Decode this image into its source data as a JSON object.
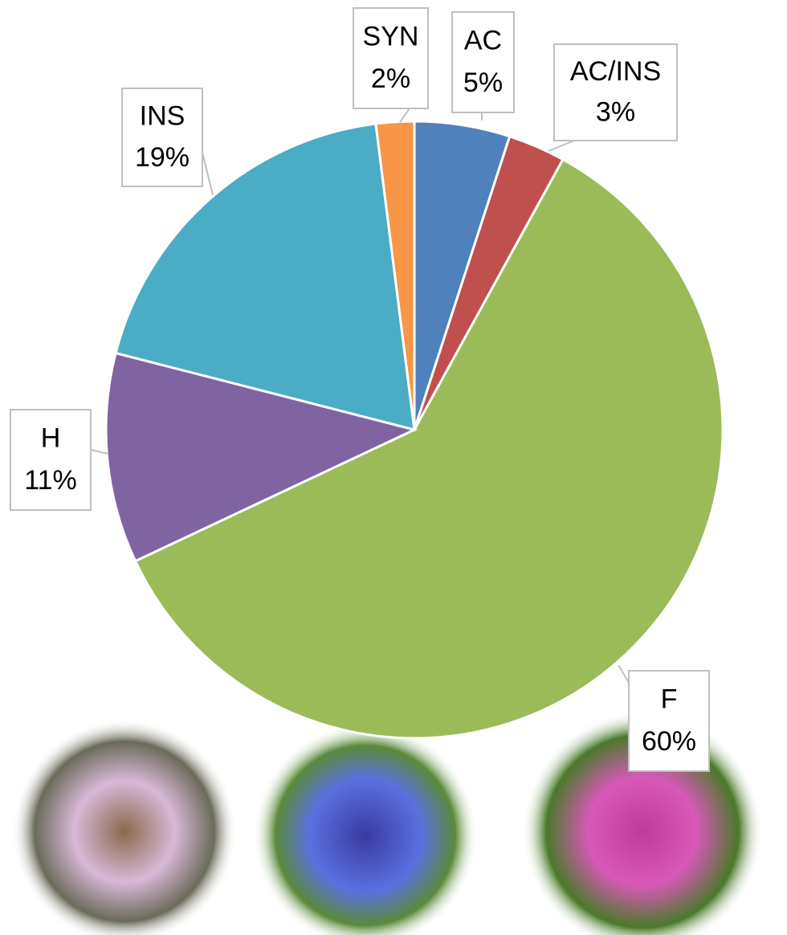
{
  "chart_data": {
    "type": "pie",
    "categories": [
      "AC",
      "AC/INS",
      "F",
      "H",
      "INS",
      "SYN"
    ],
    "values": [
      5,
      3,
      60,
      11,
      19,
      2
    ],
    "value_labels": [
      "5%",
      "3%",
      "60%",
      "11%",
      "19%",
      "2%"
    ],
    "colors": [
      "#4f81bd",
      "#c0504d",
      "#9bbb59",
      "#8064a2",
      "#4bacc6",
      "#f79646"
    ]
  }
}
